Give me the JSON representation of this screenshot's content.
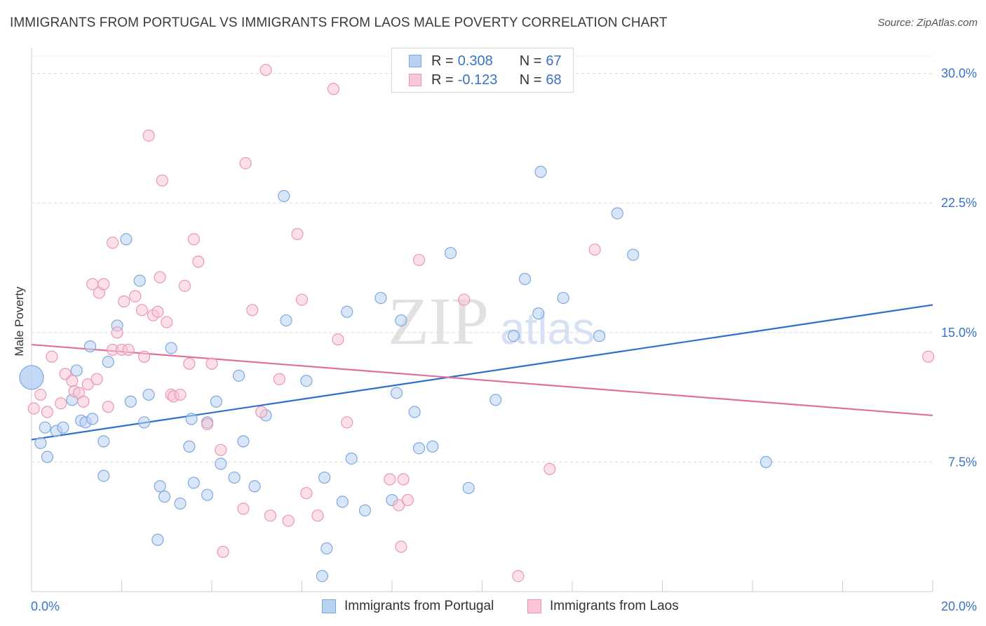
{
  "header": {
    "title": "IMMIGRANTS FROM PORTUGAL VS IMMIGRANTS FROM LAOS MALE POVERTY CORRELATION CHART",
    "source": "Source: ZipAtlas.com"
  },
  "watermark": {
    "zip": "ZIP",
    "atlas": "atlas"
  },
  "legend": {
    "portugal": {
      "r_label": "R =",
      "r_value": "0.308",
      "n_label": "N =",
      "n_value": "67"
    },
    "laos": {
      "r_label": "R =",
      "r_value": "-0.123",
      "n_label": "N =",
      "n_value": "68"
    }
  },
  "colors": {
    "portugal_fill": "#b9d1f2",
    "portugal_stroke": "#7ea8e0",
    "portugal_line": "#2d6fcc",
    "laos_fill": "#f8c6d6",
    "laos_stroke": "#eb97b3",
    "laos_line": "#e0709a",
    "accent_text": "#3a72c8"
  },
  "chart_data": {
    "type": "scatter",
    "title": "IMMIGRANTS FROM PORTUGAL VS IMMIGRANTS FROM LAOS MALE POVERTY CORRELATION CHART",
    "xlabel": "",
    "ylabel": "Male Poverty",
    "xlim": [
      0,
      20
    ],
    "ylim": [
      0,
      31
    ],
    "x_tick_labels": [
      "0.0%",
      "20.0%"
    ],
    "y_ticks": [
      7.5,
      15.0,
      22.5,
      30.0
    ],
    "y_tick_labels": [
      "7.5%",
      "15.0%",
      "22.5%",
      "30.0%"
    ],
    "grid": true,
    "series": [
      {
        "name": "Immigrants from Portugal",
        "r": 0.308,
        "n": 67,
        "trend": {
          "x": [
            0,
            20
          ],
          "y": [
            8.8,
            16.6
          ]
        },
        "points": [
          [
            0.0,
            12.4
          ],
          [
            0.2,
            8.6
          ],
          [
            0.35,
            7.8
          ],
          [
            0.3,
            9.5
          ],
          [
            0.55,
            9.3
          ],
          [
            0.7,
            9.5
          ],
          [
            0.9,
            11.1
          ],
          [
            1.0,
            12.8
          ],
          [
            1.1,
            9.9
          ],
          [
            1.2,
            9.8
          ],
          [
            1.35,
            10.0
          ],
          [
            1.3,
            14.2
          ],
          [
            1.7,
            13.3
          ],
          [
            1.6,
            8.7
          ],
          [
            1.6,
            6.7
          ],
          [
            1.9,
            15.4
          ],
          [
            2.1,
            20.4
          ],
          [
            2.2,
            11.0
          ],
          [
            2.4,
            18.0
          ],
          [
            2.5,
            9.8
          ],
          [
            2.6,
            11.4
          ],
          [
            2.8,
            3.0
          ],
          [
            2.85,
            6.1
          ],
          [
            2.95,
            5.5
          ],
          [
            3.1,
            14.1
          ],
          [
            3.3,
            5.1
          ],
          [
            3.5,
            8.4
          ],
          [
            3.55,
            10.0
          ],
          [
            3.6,
            6.3
          ],
          [
            3.9,
            9.8
          ],
          [
            3.9,
            5.6
          ],
          [
            4.1,
            11.0
          ],
          [
            4.2,
            7.4
          ],
          [
            4.5,
            6.6
          ],
          [
            4.6,
            12.5
          ],
          [
            4.7,
            8.7
          ],
          [
            4.95,
            6.1
          ],
          [
            5.2,
            10.2
          ],
          [
            5.6,
            22.9
          ],
          [
            5.65,
            15.7
          ],
          [
            6.1,
            12.2
          ],
          [
            6.45,
            0.9
          ],
          [
            6.5,
            6.6
          ],
          [
            6.55,
            2.5
          ],
          [
            6.9,
            5.2
          ],
          [
            7.0,
            16.2
          ],
          [
            7.1,
            7.7
          ],
          [
            7.4,
            4.7
          ],
          [
            7.75,
            17.0
          ],
          [
            8.0,
            5.3
          ],
          [
            8.1,
            11.5
          ],
          [
            8.2,
            15.7
          ],
          [
            8.5,
            10.4
          ],
          [
            8.6,
            8.3
          ],
          [
            8.9,
            8.4
          ],
          [
            9.3,
            19.6
          ],
          [
            9.7,
            6.0
          ],
          [
            10.3,
            11.1
          ],
          [
            10.7,
            14.8
          ],
          [
            10.95,
            18.1
          ],
          [
            11.25,
            16.1
          ],
          [
            11.3,
            24.3
          ],
          [
            11.8,
            17.0
          ],
          [
            12.6,
            14.8
          ],
          [
            13.0,
            21.9
          ],
          [
            13.35,
            19.5
          ],
          [
            16.3,
            7.5
          ]
        ]
      },
      {
        "name": "Immigrants from Laos",
        "r": -0.123,
        "n": 68,
        "trend": {
          "x": [
            0,
            20
          ],
          "y": [
            14.3,
            10.2
          ]
        },
        "points": [
          [
            0.05,
            10.6
          ],
          [
            0.2,
            11.4
          ],
          [
            0.35,
            10.4
          ],
          [
            0.45,
            13.6
          ],
          [
            0.65,
            10.9
          ],
          [
            0.75,
            12.6
          ],
          [
            0.9,
            12.2
          ],
          [
            0.95,
            11.6
          ],
          [
            1.05,
            11.5
          ],
          [
            1.15,
            11.0
          ],
          [
            1.25,
            12.0
          ],
          [
            1.35,
            17.8
          ],
          [
            1.45,
            12.3
          ],
          [
            1.5,
            17.3
          ],
          [
            1.6,
            17.8
          ],
          [
            1.7,
            10.7
          ],
          [
            1.8,
            20.2
          ],
          [
            1.8,
            14.0
          ],
          [
            1.9,
            15.0
          ],
          [
            2.0,
            14.0
          ],
          [
            2.05,
            16.8
          ],
          [
            2.15,
            14.0
          ],
          [
            2.3,
            17.1
          ],
          [
            2.45,
            16.3
          ],
          [
            2.5,
            13.6
          ],
          [
            2.6,
            26.4
          ],
          [
            2.7,
            16.0
          ],
          [
            2.8,
            16.2
          ],
          [
            2.85,
            18.2
          ],
          [
            2.9,
            23.8
          ],
          [
            3.0,
            15.6
          ],
          [
            3.1,
            11.4
          ],
          [
            3.15,
            11.3
          ],
          [
            3.3,
            11.4
          ],
          [
            3.4,
            17.7
          ],
          [
            3.5,
            13.2
          ],
          [
            3.6,
            20.4
          ],
          [
            3.7,
            19.1
          ],
          [
            3.9,
            9.7
          ],
          [
            4.0,
            13.2
          ],
          [
            4.2,
            8.2
          ],
          [
            4.25,
            2.3
          ],
          [
            4.7,
            4.8
          ],
          [
            4.75,
            24.8
          ],
          [
            4.9,
            16.3
          ],
          [
            5.1,
            10.4
          ],
          [
            5.3,
            4.4
          ],
          [
            5.5,
            12.3
          ],
          [
            5.7,
            4.1
          ],
          [
            5.9,
            20.7
          ],
          [
            6.0,
            16.9
          ],
          [
            6.1,
            5.7
          ],
          [
            6.35,
            4.4
          ],
          [
            6.7,
            29.1
          ],
          [
            6.8,
            14.6
          ],
          [
            7.0,
            9.8
          ],
          [
            7.95,
            6.5
          ],
          [
            8.15,
            5.0
          ],
          [
            8.2,
            2.6
          ],
          [
            8.25,
            6.5
          ],
          [
            8.35,
            5.3
          ],
          [
            8.6,
            19.2
          ],
          [
            9.6,
            16.9
          ],
          [
            10.8,
            0.9
          ],
          [
            11.5,
            7.1
          ],
          [
            12.5,
            19.8
          ],
          [
            19.9,
            13.6
          ],
          [
            5.2,
            30.2
          ]
        ]
      }
    ]
  },
  "bottom_legend": {
    "portugal_label": "Immigrants from Portugal",
    "laos_label": "Immigrants from Laos"
  },
  "axes": {
    "x_min_label": "0.0%",
    "x_max_label": "20.0%",
    "y_label": "Male Poverty"
  }
}
